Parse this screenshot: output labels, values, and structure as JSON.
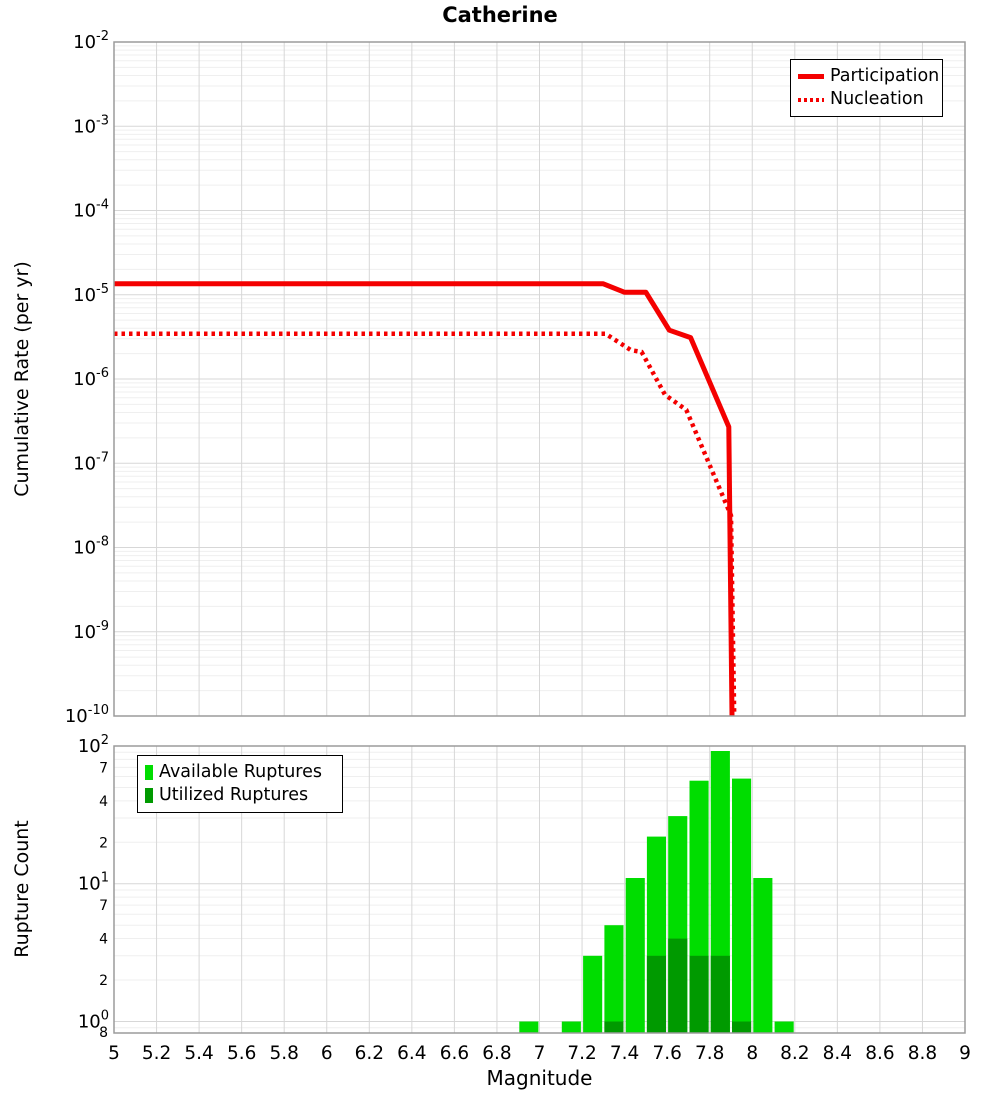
{
  "title": "Catherine",
  "colors": {
    "line_red": "#f40000",
    "available_green": "#00dd00",
    "utilized_green": "#009a00",
    "grid_major": "#d7d7d7",
    "grid_minor": "#efefef",
    "plot_border": "#9b9b9b",
    "text": "#000000",
    "legend_border": "#000000",
    "background": "#ffffff"
  },
  "chart_data": [
    {
      "type": "line",
      "title": "Catherine",
      "ylabel": "Cumulative Rate (per yr)",
      "x_axis": {
        "min": 5,
        "max": 9,
        "tick_step": 0.2
      },
      "y_axis": {
        "scale": "log",
        "min": 1e-10,
        "max": 0.01
      },
      "grid": true,
      "legend": {
        "position": "top-right"
      },
      "series": [
        {
          "name": "Participation",
          "line_style": "solid",
          "color_key": "line_red",
          "points": [
            [
              5.0,
              1.35e-05
            ],
            [
              7.3,
              1.35e-05
            ],
            [
              7.4,
              1.07e-05
            ],
            [
              7.5,
              1.07e-05
            ],
            [
              7.61,
              3.8e-06
            ],
            [
              7.71,
              3.1e-06
            ],
            [
              7.89,
              2.7e-07
            ],
            [
              7.905,
              1e-10
            ]
          ]
        },
        {
          "name": "Nucleation",
          "line_style": "dotted",
          "color_key": "line_red",
          "points": [
            [
              5.0,
              3.45e-06
            ],
            [
              7.31,
              3.45e-06
            ],
            [
              7.43,
              2.2e-06
            ],
            [
              7.48,
              2.1e-06
            ],
            [
              7.59,
              6.5e-07
            ],
            [
              7.69,
              4.3e-07
            ],
            [
              7.9,
              2.4e-08
            ],
            [
              7.915,
              1e-10
            ]
          ]
        }
      ]
    },
    {
      "type": "bar",
      "xlabel": "Magnitude",
      "ylabel": "Rupture Count",
      "x_axis": {
        "min": 5,
        "max": 9,
        "tick_step": 0.2
      },
      "y_axis": {
        "scale": "log",
        "min": 0.825,
        "max": 100,
        "minor_tick_labels": [
          70,
          40,
          20,
          7,
          4,
          2
        ],
        "bottom_edge_label": "8"
      },
      "grid": true,
      "bin_width": 0.1,
      "legend": {
        "position": "top-left"
      },
      "series": [
        {
          "name": "Available Ruptures",
          "color_key": "available_green",
          "bins": [
            [
              6.95,
              1
            ],
            [
              7.15,
              1
            ],
            [
              7.25,
              3
            ],
            [
              7.35,
              5
            ],
            [
              7.45,
              11
            ],
            [
              7.55,
              22
            ],
            [
              7.65,
              31
            ],
            [
              7.75,
              56
            ],
            [
              7.85,
              92
            ],
            [
              7.95,
              58
            ],
            [
              8.05,
              11
            ],
            [
              8.15,
              1
            ]
          ]
        },
        {
          "name": "Utilized Ruptures",
          "color_key": "utilized_green",
          "bins": [
            [
              7.35,
              1
            ],
            [
              7.55,
              3
            ],
            [
              7.65,
              4
            ],
            [
              7.75,
              3
            ],
            [
              7.85,
              3
            ],
            [
              7.95,
              1
            ]
          ]
        }
      ]
    }
  ]
}
